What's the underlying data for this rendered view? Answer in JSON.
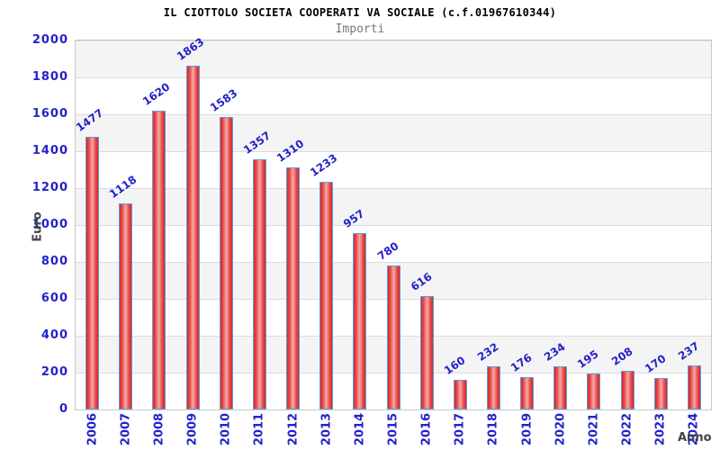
{
  "chart_data": {
    "type": "bar",
    "title": "IL CIOTTOLO SOCIETA COOPERATI VA SOCIALE (c.f.01967610344)",
    "subtitle": "Importi",
    "xlabel": "Anno",
    "ylabel": "Euro",
    "categories": [
      "2006",
      "2007",
      "2008",
      "2009",
      "2010",
      "2011",
      "2012",
      "2013",
      "2014",
      "2015",
      "2016",
      "2017",
      "2018",
      "2019",
      "2020",
      "2021",
      "2022",
      "2023",
      "2024"
    ],
    "values": [
      1477,
      1118,
      1620,
      1863,
      1583,
      1357,
      1310,
      1233,
      957,
      780,
      616,
      160,
      232,
      176,
      234,
      195,
      208,
      170,
      237
    ],
    "ylim": [
      0,
      2000
    ],
    "ytick_step": 200,
    "legend": "none",
    "grid": "horizontal-bands-alternating-gray-white",
    "value_labels": "rotated above bars",
    "style": {
      "label_color": "#2222cc",
      "title_color": "#000000",
      "subtitle_color": "#777777",
      "axis_title_color": "#444444",
      "bar_edge_color": "#d92525",
      "bar_mid_color": "#e94b4b",
      "bar_highlight_color": "#f2abab",
      "bar_border_color": "#58a0dc",
      "band_gray": "#f4f4f4",
      "band_white": "#ffffff",
      "gridline_color": "#dcdcdc",
      "plot_border_color": "#c9c9c9",
      "background": "#ffffff"
    }
  }
}
